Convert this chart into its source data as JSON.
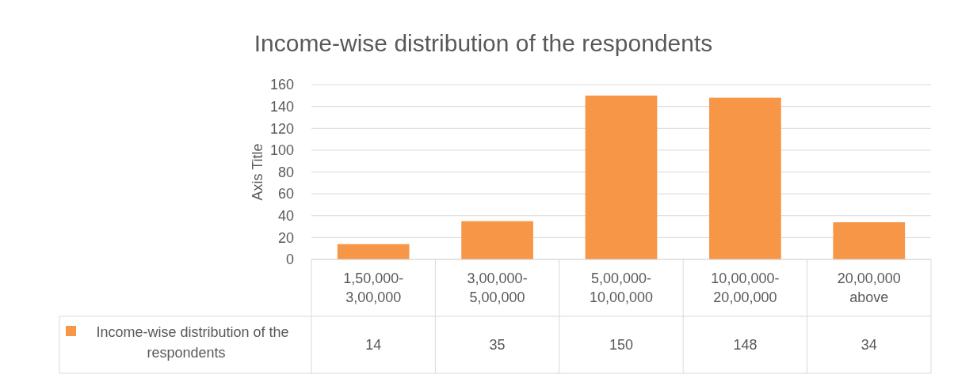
{
  "chart_data": {
    "type": "bar",
    "title": "Income-wise distribution of the respondents",
    "ylabel": "Axis Title",
    "categories": [
      "1,50,000-3,00,000",
      "3,00,000-5,00,000",
      "5,00,000-10,00,000",
      "10,00,000-20,00,000",
      "20,00,000 above"
    ],
    "series": [
      {
        "name": "Income-wise distribution of the respondents",
        "color": "#f79646",
        "values": [
          14,
          35,
          150,
          148,
          34
        ]
      }
    ],
    "ylim": [
      0,
      160
    ],
    "yticks": [
      0,
      20,
      40,
      60,
      80,
      100,
      120,
      140,
      160
    ],
    "grid": "y",
    "data_labels": true,
    "legend": "bottom"
  }
}
